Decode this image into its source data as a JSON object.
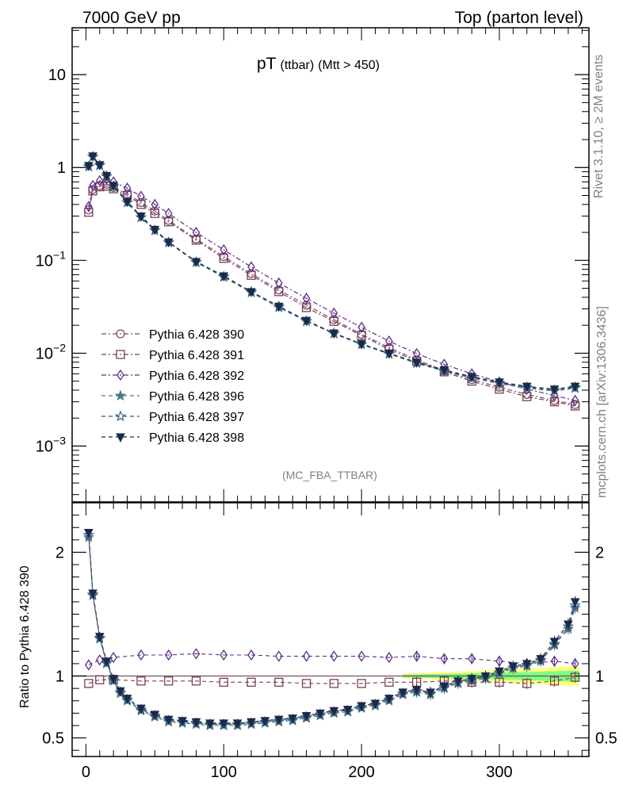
{
  "header": {
    "left": "7000 GeV pp",
    "right": "Top (parton level)"
  },
  "plot_title": {
    "main": "pT",
    "sub1": "(ttbar)",
    "sub2": "(Mtt > 450)"
  },
  "side_text": {
    "top": "Rivet 3.1.10, ≥ 2M events",
    "bottom": "mcplots.cern.ch [arXiv:1306.3436]"
  },
  "watermark": "(MC_FBA_TTBAR)",
  "ratio_ylabel": "Ratio to Pythia 6.428 390",
  "colors": {
    "s390": "#7b4a6e",
    "s391": "#7a3f52",
    "s392": "#5a2e88",
    "s396": "#4a7a86",
    "s397": "#3a5a7a",
    "s398": "#1a2a4a",
    "band_green": "#7fff7f",
    "band_yellow": "#ffff80"
  },
  "chart_data": [
    {
      "type": "scatter",
      "yscale": "log",
      "xlim": [
        -10,
        365
      ],
      "ylim": [
        0.00025,
        32
      ],
      "yticks": [
        {
          "value": 0.001,
          "base": "10",
          "exp": "−3"
        },
        {
          "value": 0.01,
          "base": "10",
          "exp": "−2"
        },
        {
          "value": 0.1,
          "base": "10",
          "exp": "−1"
        },
        {
          "value": 1,
          "base": "1",
          "exp": ""
        },
        {
          "value": 10,
          "base": "10",
          "exp": ""
        }
      ],
      "legend_position": "lower-left",
      "series": [
        {
          "name": "Pythia 6.428 390",
          "marker": "circle-open",
          "linestyle": "dashdot",
          "x": [
            2,
            5,
            10,
            15,
            20,
            30,
            40,
            50,
            60,
            80,
            100,
            120,
            140,
            160,
            180,
            200,
            220,
            240,
            260,
            280,
            300,
            320,
            340,
            355
          ],
          "y": [
            0.35,
            0.58,
            0.64,
            0.66,
            0.61,
            0.52,
            0.42,
            0.34,
            0.27,
            0.17,
            0.11,
            0.072,
            0.048,
            0.033,
            0.023,
            0.016,
            0.0115,
            0.0085,
            0.0065,
            0.0052,
            0.0043,
            0.0036,
            0.0031,
            0.0028
          ]
        },
        {
          "name": "Pythia 6.428 391",
          "marker": "square-open",
          "linestyle": "dashdot",
          "x": [
            2,
            5,
            10,
            15,
            20,
            30,
            40,
            50,
            60,
            80,
            100,
            120,
            140,
            160,
            180,
            200,
            220,
            240,
            260,
            280,
            300,
            320,
            340,
            355
          ],
          "y": [
            0.33,
            0.56,
            0.62,
            0.63,
            0.59,
            0.5,
            0.4,
            0.32,
            0.26,
            0.165,
            0.105,
            0.069,
            0.046,
            0.031,
            0.022,
            0.0155,
            0.011,
            0.0082,
            0.0063,
            0.005,
            0.0041,
            0.0034,
            0.003,
            0.0027
          ]
        },
        {
          "name": "Pythia 6.428 392",
          "marker": "diamond-open",
          "linestyle": "dashdot",
          "x": [
            2,
            5,
            10,
            15,
            20,
            30,
            40,
            50,
            60,
            80,
            100,
            120,
            140,
            160,
            180,
            200,
            220,
            240,
            260,
            280,
            300,
            320,
            340,
            355
          ],
          "y": [
            0.38,
            0.64,
            0.72,
            0.75,
            0.7,
            0.6,
            0.49,
            0.4,
            0.32,
            0.2,
            0.13,
            0.085,
            0.057,
            0.039,
            0.027,
            0.019,
            0.0135,
            0.0099,
            0.0076,
            0.006,
            0.0049,
            0.0041,
            0.0035,
            0.0031
          ]
        },
        {
          "name": "Pythia 6.428 396",
          "marker": "star-filled",
          "linestyle": "dashed",
          "x": [
            2,
            5,
            10,
            15,
            20,
            30,
            40,
            50,
            60,
            80,
            100,
            120,
            140,
            160,
            180,
            200,
            220,
            240,
            260,
            280,
            300,
            320,
            340,
            355
          ],
          "y": [
            1.02,
            1.3,
            1.05,
            0.8,
            0.62,
            0.42,
            0.29,
            0.21,
            0.155,
            0.095,
            0.066,
            0.045,
            0.031,
            0.022,
            0.0162,
            0.0124,
            0.0098,
            0.0078,
            0.0064,
            0.0054,
            0.0047,
            0.0042,
            0.0039,
            0.0042
          ]
        },
        {
          "name": "Pythia 6.428 397",
          "marker": "star-open",
          "linestyle": "dashed",
          "x": [
            2,
            5,
            10,
            15,
            20,
            30,
            40,
            50,
            60,
            80,
            100,
            120,
            140,
            160,
            180,
            200,
            220,
            240,
            260,
            280,
            300,
            320,
            340,
            355
          ],
          "y": [
            1.03,
            1.31,
            1.06,
            0.81,
            0.63,
            0.42,
            0.29,
            0.21,
            0.156,
            0.096,
            0.067,
            0.046,
            0.032,
            0.0222,
            0.0164,
            0.0125,
            0.0099,
            0.0079,
            0.0065,
            0.0055,
            0.0048,
            0.0043,
            0.004,
            0.0043
          ]
        },
        {
          "name": "Pythia 6.428 398",
          "marker": "triangle-down-filled",
          "linestyle": "dashed",
          "x": [
            2,
            5,
            10,
            15,
            20,
            30,
            40,
            50,
            60,
            80,
            100,
            120,
            140,
            160,
            180,
            200,
            220,
            240,
            260,
            280,
            300,
            320,
            340,
            355
          ],
          "y": [
            1.05,
            1.33,
            1.07,
            0.82,
            0.64,
            0.43,
            0.3,
            0.215,
            0.158,
            0.097,
            0.068,
            0.046,
            0.032,
            0.0225,
            0.0165,
            0.0126,
            0.01,
            0.008,
            0.0066,
            0.0056,
            0.0049,
            0.0044,
            0.0041,
            0.0044
          ]
        }
      ]
    },
    {
      "type": "scatter",
      "yscale": "linear",
      "xlim": [
        -10,
        365
      ],
      "ylim": [
        0.35,
        2.4
      ],
      "ylabel": "Ratio to Pythia 6.428 390",
      "yticks": [
        0.5,
        1,
        2
      ],
      "xticks": [
        0,
        100,
        200,
        300
      ],
      "reference_line": 1,
      "series": [
        {
          "name": "Pythia 6.428 391",
          "marker": "square-open",
          "x": [
            2,
            10,
            20,
            40,
            60,
            80,
            100,
            120,
            140,
            160,
            180,
            200,
            220,
            240,
            260,
            280,
            300,
            320,
            340,
            355
          ],
          "y": [
            0.94,
            0.97,
            0.97,
            0.96,
            0.96,
            0.96,
            0.95,
            0.95,
            0.95,
            0.94,
            0.94,
            0.94,
            0.95,
            0.95,
            0.96,
            0.95,
            0.95,
            0.94,
            0.96,
            0.99
          ]
        },
        {
          "name": "Pythia 6.428 392",
          "marker": "diamond-open",
          "x": [
            2,
            10,
            20,
            40,
            60,
            80,
            100,
            120,
            140,
            160,
            180,
            200,
            220,
            240,
            260,
            280,
            300,
            320,
            340,
            355
          ],
          "y": [
            1.09,
            1.13,
            1.15,
            1.17,
            1.17,
            1.18,
            1.17,
            1.17,
            1.16,
            1.16,
            1.16,
            1.16,
            1.15,
            1.16,
            1.14,
            1.14,
            1.12,
            1.1,
            1.12,
            1.1
          ]
        },
        {
          "name": "Pythia 6.428 396",
          "marker": "star-filled",
          "x": [
            2,
            5,
            10,
            15,
            20,
            25,
            30,
            40,
            50,
            60,
            70,
            80,
            90,
            100,
            110,
            120,
            130,
            140,
            150,
            160,
            170,
            180,
            190,
            200,
            210,
            220,
            230,
            240,
            250,
            260,
            270,
            280,
            290,
            300,
            310,
            320,
            330,
            340,
            350,
            355
          ],
          "y": [
            2.12,
            1.65,
            1.3,
            1.1,
            0.96,
            0.86,
            0.8,
            0.72,
            0.67,
            0.63,
            0.62,
            0.61,
            0.6,
            0.6,
            0.6,
            0.61,
            0.62,
            0.63,
            0.64,
            0.66,
            0.68,
            0.7,
            0.71,
            0.74,
            0.76,
            0.8,
            0.85,
            0.87,
            0.85,
            0.9,
            0.94,
            0.96,
            0.98,
            1.02,
            1.06,
            1.08,
            1.12,
            1.25,
            1.38,
            1.55
          ]
        },
        {
          "name": "Pythia 6.428 397",
          "marker": "star-open",
          "x": [
            2,
            5,
            10,
            15,
            20,
            25,
            30,
            40,
            50,
            60,
            70,
            80,
            90,
            100,
            110,
            120,
            130,
            140,
            150,
            160,
            170,
            180,
            190,
            200,
            210,
            220,
            230,
            240,
            250,
            260,
            270,
            280,
            290,
            300,
            310,
            320,
            330,
            340,
            350,
            355
          ],
          "y": [
            2.14,
            1.66,
            1.31,
            1.11,
            0.97,
            0.87,
            0.81,
            0.73,
            0.68,
            0.64,
            0.63,
            0.62,
            0.61,
            0.61,
            0.61,
            0.62,
            0.63,
            0.64,
            0.65,
            0.67,
            0.69,
            0.71,
            0.72,
            0.75,
            0.77,
            0.81,
            0.86,
            0.88,
            0.86,
            0.91,
            0.95,
            0.97,
            0.99,
            1.03,
            1.07,
            1.09,
            1.13,
            1.26,
            1.4,
            1.57
          ]
        },
        {
          "name": "Pythia 6.428 398",
          "marker": "triangle-down-filled",
          "x": [
            2,
            5,
            10,
            15,
            20,
            25,
            30,
            40,
            50,
            60,
            70,
            80,
            90,
            100,
            110,
            120,
            130,
            140,
            150,
            160,
            170,
            180,
            190,
            200,
            210,
            220,
            230,
            240,
            250,
            260,
            270,
            280,
            290,
            300,
            310,
            320,
            330,
            340,
            350,
            355
          ],
          "y": [
            2.16,
            1.67,
            1.32,
            1.12,
            0.98,
            0.88,
            0.82,
            0.74,
            0.69,
            0.65,
            0.64,
            0.63,
            0.62,
            0.62,
            0.62,
            0.63,
            0.64,
            0.65,
            0.66,
            0.68,
            0.7,
            0.72,
            0.73,
            0.76,
            0.78,
            0.82,
            0.87,
            0.89,
            0.87,
            0.92,
            0.96,
            0.98,
            1.0,
            1.04,
            1.08,
            1.1,
            1.14,
            1.28,
            1.42,
            1.6
          ]
        }
      ]
    }
  ]
}
